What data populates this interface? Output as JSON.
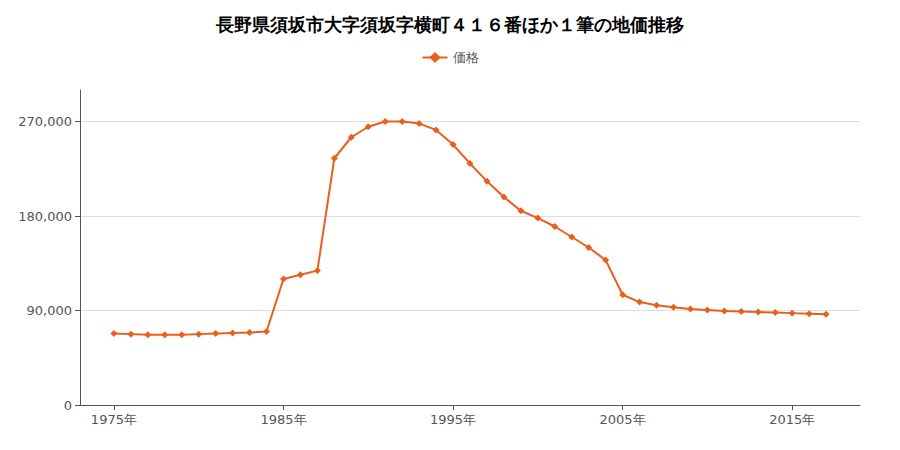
{
  "chart_data": {
    "type": "line",
    "title": "長野県須坂市大字須坂字横町４１６番ほか１筆の地価推移",
    "x": [
      1975,
      1976,
      1977,
      1978,
      1979,
      1980,
      1981,
      1982,
      1983,
      1984,
      1985,
      1986,
      1987,
      1988,
      1989,
      1990,
      1991,
      1992,
      1993,
      1994,
      1995,
      1996,
      1997,
      1998,
      1999,
      2000,
      2001,
      2002,
      2003,
      2004,
      2005,
      2006,
      2007,
      2008,
      2009,
      2010,
      2011,
      2012,
      2013,
      2014,
      2015,
      2016,
      2017
    ],
    "series": [
      {
        "name": "価格",
        "color": "#E8601C",
        "marker": "diamond",
        "values": [
          68000,
          67500,
          67000,
          67000,
          67000,
          67500,
          68000,
          68500,
          69000,
          70000,
          120000,
          124000,
          128000,
          235000,
          255000,
          265000,
          270000,
          270000,
          268000,
          262000,
          248000,
          230000,
          213000,
          198000,
          185000,
          178000,
          170000,
          160000,
          150000,
          138000,
          105000,
          98000,
          95000,
          93000,
          91500,
          90500,
          89500,
          89000,
          88500,
          88000,
          87500,
          87000,
          86500
        ]
      }
    ],
    "xlim": [
      1973,
      2019
    ],
    "xticks": [
      {
        "value": 1975,
        "label": "1975年"
      },
      {
        "value": 1985,
        "label": "1985年"
      },
      {
        "value": 1995,
        "label": "1995年"
      },
      {
        "value": 2005,
        "label": "2005年"
      },
      {
        "value": 2015,
        "label": "2015年"
      }
    ],
    "ylim": [
      0,
      300000
    ],
    "yticks": [
      0,
      {
        "value": 90000,
        "label": "90,000"
      },
      {
        "value": 180000,
        "label": "180,000"
      },
      {
        "value": 270000,
        "label": "270,000"
      }
    ],
    "grid": true,
    "legend": "top"
  }
}
